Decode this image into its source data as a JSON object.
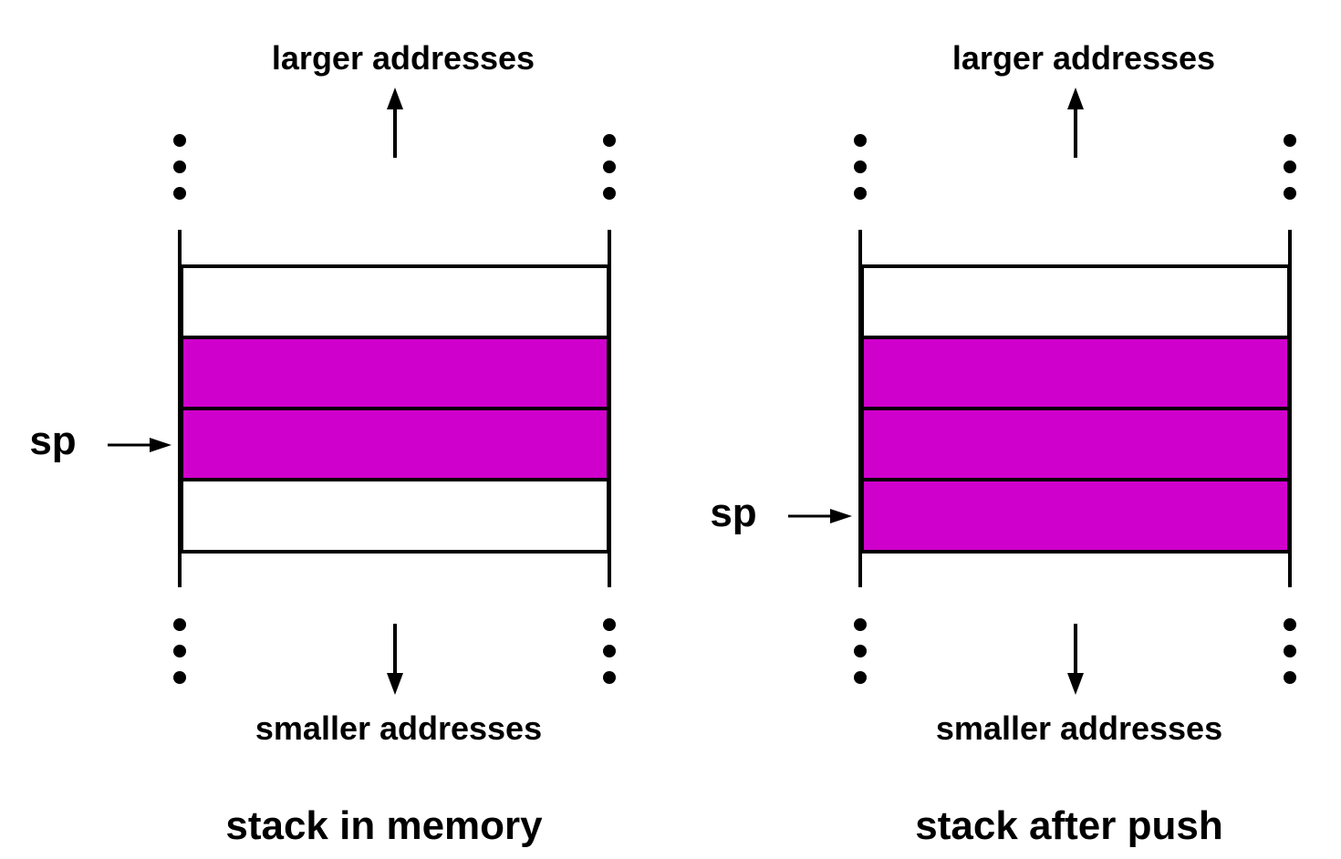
{
  "colors": {
    "filled_cell": "#D000CC",
    "empty_cell": "#FFFFFF",
    "line": "#000000"
  },
  "panels": [
    {
      "top_label": "larger addresses",
      "bottom_label": "smaller addresses",
      "caption": "stack in memory",
      "pointer_label": "sp",
      "cells": [
        {
          "filled": false
        },
        {
          "filled": true
        },
        {
          "filled": true
        },
        {
          "filled": false
        }
      ],
      "sp_cell_index": 2
    },
    {
      "top_label": "larger addresses",
      "bottom_label": "smaller addresses",
      "caption": "stack after push",
      "pointer_label": "sp",
      "cells": [
        {
          "filled": false
        },
        {
          "filled": true
        },
        {
          "filled": true
        },
        {
          "filled": true
        }
      ],
      "sp_cell_index": 3
    }
  ]
}
